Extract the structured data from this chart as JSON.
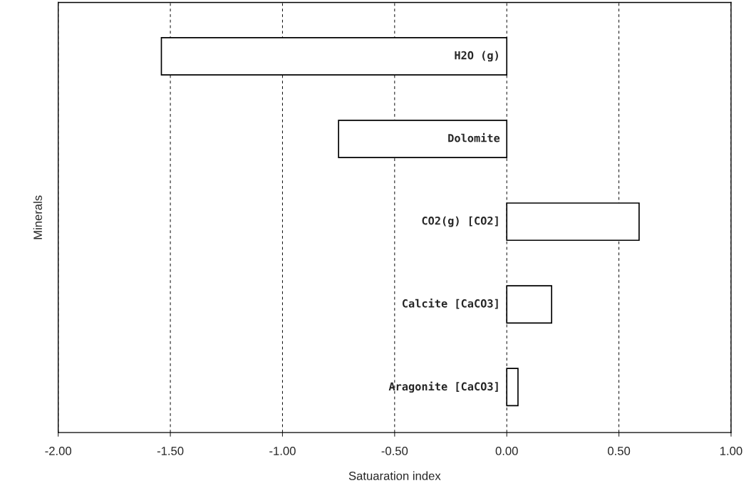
{
  "chart_data": {
    "type": "bar",
    "orientation": "horizontal",
    "xlabel": "Satuaration index",
    "ylabel": "Minerals",
    "categories": [
      "H2O (g)",
      "Dolomite",
      "CO2(g) [CO2]",
      "Calcite [CaCO3]",
      "Aragonite [CaCO3]"
    ],
    "values": [
      -1.54,
      -0.75,
      0.59,
      0.2,
      0.05
    ],
    "color": "#ffffff",
    "xlim": [
      -2.0,
      1.0
    ],
    "xticks": [
      {
        "value": -2.0,
        "label": "-2.00"
      },
      {
        "value": -1.5,
        "label": "-1.50"
      },
      {
        "value": -1.0,
        "label": "-1.00"
      },
      {
        "value": -0.5,
        "label": "-0.50"
      },
      {
        "value": 0.0,
        "label": "0.00"
      },
      {
        "value": 0.5,
        "label": "0.50"
      },
      {
        "value": 1.0,
        "label": "1.00"
      }
    ],
    "grid": "x",
    "tick_labels": "x",
    "legend": false
  }
}
